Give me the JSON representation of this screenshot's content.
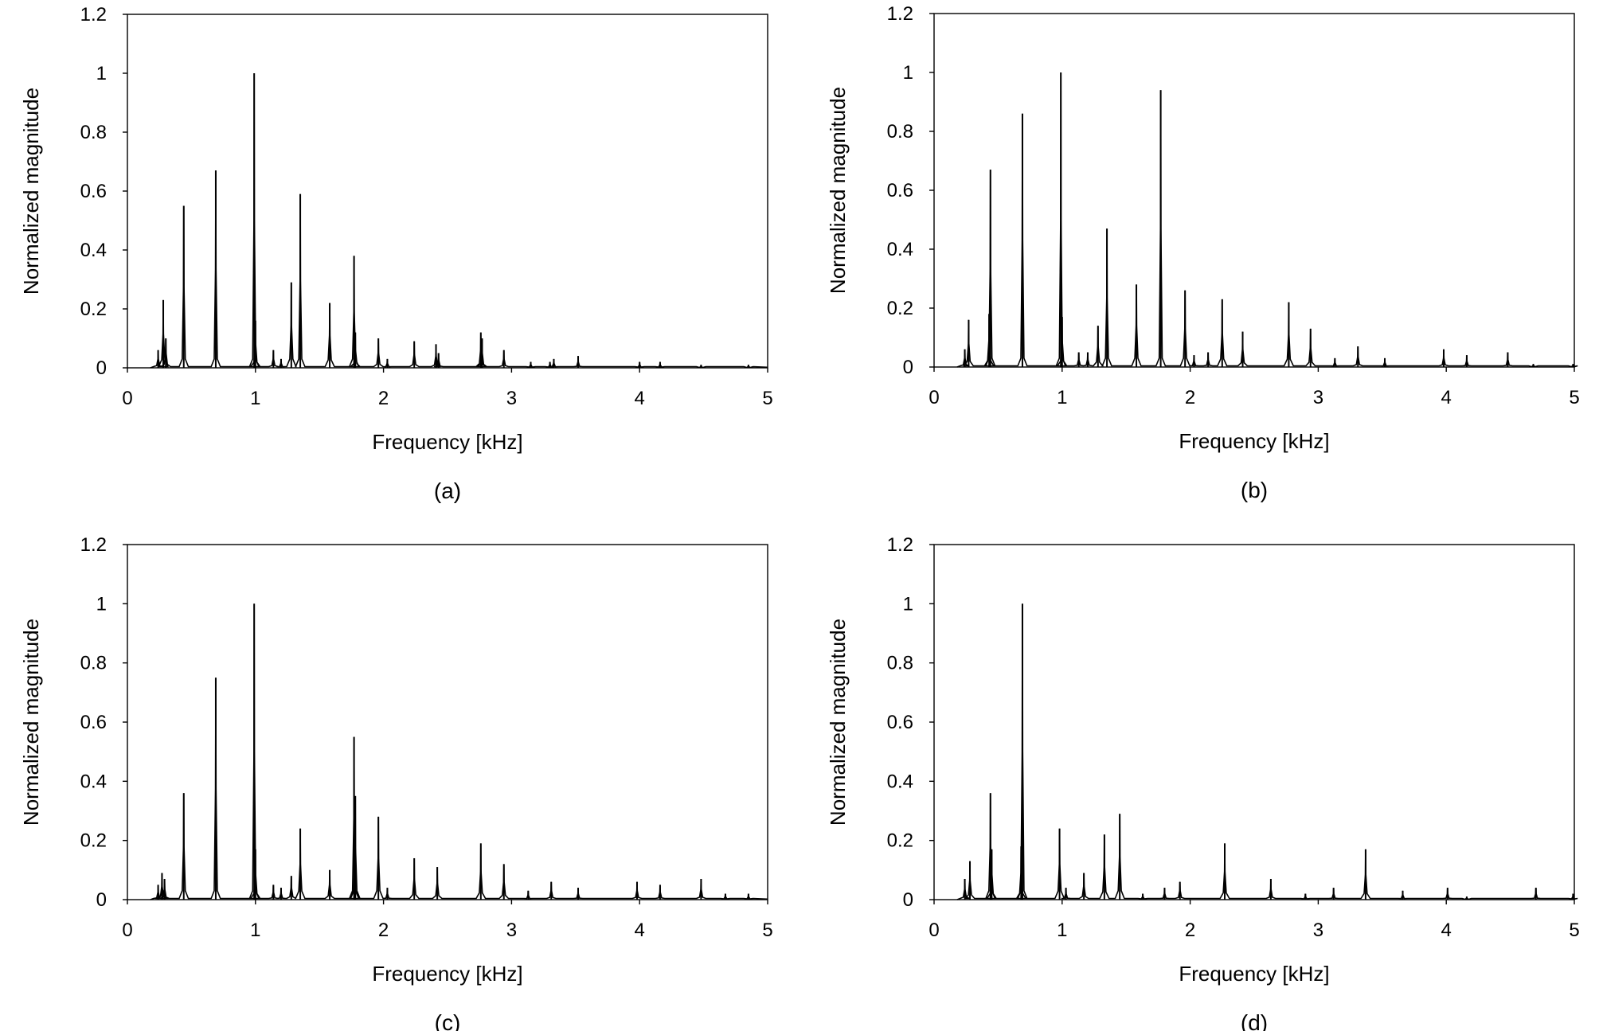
{
  "figure": {
    "line_color": "#000000",
    "background": "#ffffff"
  },
  "chart_data": [
    {
      "type": "line",
      "caption": "(a)",
      "xlabel": "Frequency [kHz]",
      "ylabel": "Normalized magnitude",
      "xlim": [
        0,
        5
      ],
      "ylim": [
        0,
        1.2
      ],
      "xticks": [
        "0",
        "1",
        "2",
        "3",
        "4",
        "5"
      ],
      "yticks": [
        "0",
        "0.2",
        "0.4",
        "0.6",
        "0.8",
        "1",
        "1.2"
      ],
      "grid": false,
      "series": [
        {
          "peaks": [
            [
              0.24,
              0.06
            ],
            [
              0.28,
              0.23
            ],
            [
              0.3,
              0.1
            ],
            [
              0.44,
              0.55
            ],
            [
              0.69,
              0.67
            ],
            [
              0.99,
              1.0
            ],
            [
              1.0,
              0.16
            ],
            [
              1.14,
              0.06
            ],
            [
              1.2,
              0.03
            ],
            [
              1.28,
              0.29
            ],
            [
              1.35,
              0.59
            ],
            [
              1.58,
              0.22
            ],
            [
              1.77,
              0.38
            ],
            [
              1.78,
              0.12
            ],
            [
              1.96,
              0.1
            ],
            [
              2.03,
              0.03
            ],
            [
              2.24,
              0.09
            ],
            [
              2.41,
              0.08
            ],
            [
              2.43,
              0.05
            ],
            [
              2.76,
              0.12
            ],
            [
              2.77,
              0.1
            ],
            [
              2.94,
              0.06
            ],
            [
              3.15,
              0.02
            ],
            [
              3.3,
              0.02
            ],
            [
              3.33,
              0.03
            ],
            [
              3.52,
              0.04
            ],
            [
              4.0,
              0.02
            ],
            [
              4.16,
              0.02
            ],
            [
              4.48,
              0.01
            ],
            [
              4.85,
              0.01
            ]
          ]
        }
      ]
    },
    {
      "type": "line",
      "caption": "(b)",
      "xlabel": "Frequency [kHz]",
      "ylabel": "Normalized magnitude",
      "xlim": [
        0,
        5
      ],
      "ylim": [
        0,
        1.2
      ],
      "xticks": [
        "0",
        "1",
        "2",
        "3",
        "4",
        "5"
      ],
      "yticks": [
        "0",
        "0.2",
        "0.4",
        "0.6",
        "0.8",
        "1",
        "1.2"
      ],
      "grid": false,
      "series": [
        {
          "peaks": [
            [
              0.24,
              0.06
            ],
            [
              0.27,
              0.16
            ],
            [
              0.43,
              0.18
            ],
            [
              0.44,
              0.67
            ],
            [
              0.69,
              0.86
            ],
            [
              0.99,
              1.0
            ],
            [
              1.0,
              0.17
            ],
            [
              1.13,
              0.05
            ],
            [
              1.2,
              0.05
            ],
            [
              1.28,
              0.14
            ],
            [
              1.35,
              0.47
            ],
            [
              1.58,
              0.28
            ],
            [
              1.77,
              0.94
            ],
            [
              1.96,
              0.26
            ],
            [
              2.03,
              0.04
            ],
            [
              2.14,
              0.05
            ],
            [
              2.25,
              0.23
            ],
            [
              2.41,
              0.12
            ],
            [
              2.77,
              0.22
            ],
            [
              2.94,
              0.13
            ],
            [
              3.13,
              0.03
            ],
            [
              3.31,
              0.07
            ],
            [
              3.52,
              0.03
            ],
            [
              3.98,
              0.06
            ],
            [
              4.16,
              0.04
            ],
            [
              4.48,
              0.05
            ],
            [
              4.68,
              0.01
            ],
            [
              4.99,
              0.01
            ]
          ]
        }
      ]
    },
    {
      "type": "line",
      "caption": "(c)",
      "xlabel": "Frequency [kHz]",
      "ylabel": "Normalized magnitude",
      "xlim": [
        0,
        5
      ],
      "ylim": [
        0,
        1.2
      ],
      "xticks": [
        "0",
        "1",
        "2",
        "3",
        "4",
        "5"
      ],
      "yticks": [
        "0",
        "0.2",
        "0.4",
        "0.6",
        "0.8",
        "1",
        "1.2"
      ],
      "grid": false,
      "series": [
        {
          "peaks": [
            [
              0.24,
              0.05
            ],
            [
              0.27,
              0.09
            ],
            [
              0.29,
              0.07
            ],
            [
              0.44,
              0.36
            ],
            [
              0.69,
              0.75
            ],
            [
              0.99,
              1.0
            ],
            [
              1.0,
              0.17
            ],
            [
              1.14,
              0.05
            ],
            [
              1.2,
              0.04
            ],
            [
              1.28,
              0.08
            ],
            [
              1.35,
              0.24
            ],
            [
              1.58,
              0.1
            ],
            [
              1.77,
              0.55
            ],
            [
              1.78,
              0.35
            ],
            [
              1.96,
              0.28
            ],
            [
              2.03,
              0.04
            ],
            [
              2.24,
              0.14
            ],
            [
              2.42,
              0.11
            ],
            [
              2.76,
              0.19
            ],
            [
              2.94,
              0.12
            ],
            [
              3.13,
              0.03
            ],
            [
              3.31,
              0.06
            ],
            [
              3.52,
              0.04
            ],
            [
              3.98,
              0.06
            ],
            [
              4.16,
              0.05
            ],
            [
              4.48,
              0.07
            ],
            [
              4.67,
              0.02
            ],
            [
              4.85,
              0.02
            ]
          ]
        }
      ]
    },
    {
      "type": "line",
      "caption": "(d)",
      "xlabel": "Frequency [kHz]",
      "ylabel": "Normalized magnitude",
      "xlim": [
        0,
        5
      ],
      "ylim": [
        0,
        1.2
      ],
      "xticks": [
        "0",
        "1",
        "2",
        "3",
        "4",
        "5"
      ],
      "yticks": [
        "0",
        "0.2",
        "0.4",
        "0.6",
        "0.8",
        "1",
        "1.2"
      ],
      "grid": false,
      "series": [
        {
          "peaks": [
            [
              0.24,
              0.07
            ],
            [
              0.28,
              0.13
            ],
            [
              0.44,
              0.36
            ],
            [
              0.45,
              0.17
            ],
            [
              0.69,
              1.0
            ],
            [
              0.68,
              0.18
            ],
            [
              0.98,
              0.24
            ],
            [
              1.03,
              0.04
            ],
            [
              1.17,
              0.09
            ],
            [
              1.33,
              0.22
            ],
            [
              1.45,
              0.29
            ],
            [
              1.63,
              0.02
            ],
            [
              1.8,
              0.04
            ],
            [
              1.92,
              0.06
            ],
            [
              2.27,
              0.19
            ],
            [
              2.63,
              0.07
            ],
            [
              2.9,
              0.02
            ],
            [
              3.12,
              0.04
            ],
            [
              3.37,
              0.17
            ],
            [
              3.66,
              0.03
            ],
            [
              4.01,
              0.04
            ],
            [
              4.16,
              0.01
            ],
            [
              4.7,
              0.04
            ],
            [
              4.99,
              0.02
            ]
          ]
        }
      ]
    }
  ]
}
